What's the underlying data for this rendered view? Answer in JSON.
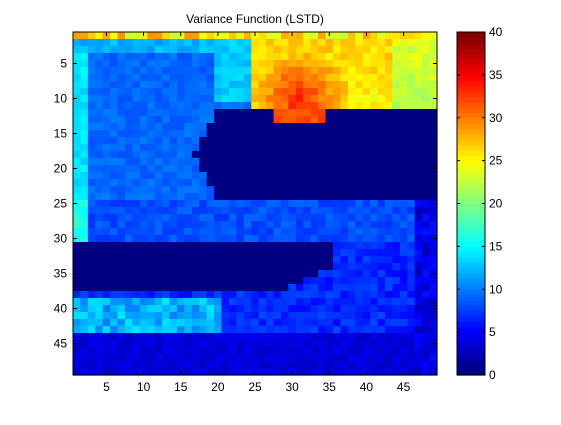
{
  "chart_data": {
    "type": "heatmap",
    "title": "Variance Function (LSTD)",
    "xlabel": "",
    "ylabel": "",
    "grid": "off",
    "colormap": "jet",
    "x_range": [
      1,
      49
    ],
    "y_range": [
      1,
      49
    ],
    "y_direction": "reversed",
    "x_ticks": [
      5,
      10,
      15,
      20,
      25,
      30,
      35,
      40,
      45
    ],
    "y_ticks": [
      5,
      10,
      15,
      20,
      25,
      30,
      35,
      40,
      45
    ],
    "colorbar": {
      "range": [
        0,
        40
      ],
      "ticks": [
        0,
        5,
        10,
        15,
        20,
        25,
        30,
        35,
        40
      ]
    },
    "regions": [
      {
        "name": "upper-left blue lobe",
        "x": [
          1,
          24
        ],
        "y": [
          1,
          24
        ],
        "approx_value": 9
      },
      {
        "name": "upper-right warm region",
        "x": [
          25,
          49
        ],
        "y": [
          1,
          11
        ],
        "approx_value": 28
      },
      {
        "name": "peak band",
        "x": [
          27,
          35
        ],
        "y": [
          8,
          13
        ],
        "approx_value": 33
      },
      {
        "name": "central zero region",
        "x": [
          17,
          49
        ],
        "y": [
          12,
          24
        ],
        "approx_value": 0
      },
      {
        "name": "middle blue band",
        "x": [
          11,
          49
        ],
        "y": [
          25,
          47
        ],
        "approx_value": 7
      },
      {
        "name": "left zero band",
        "x": [
          1,
          35
        ],
        "y": [
          31,
          37
        ],
        "approx_value": 0
      },
      {
        "name": "lower-left cyan stripe",
        "x": [
          3,
          20
        ],
        "y": [
          39,
          43
        ],
        "approx_value": 12
      }
    ]
  }
}
